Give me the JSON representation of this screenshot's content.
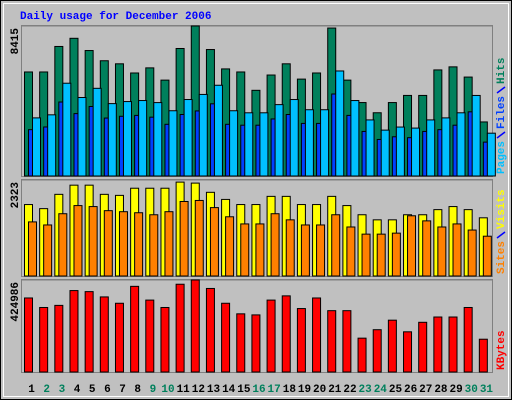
{
  "chart_data": [
    {
      "type": "bar",
      "title": "Daily usage for December 2006",
      "ylim": [
        0,
        8415
      ],
      "yticks": [
        8415
      ],
      "series": [
        {
          "name": "Pages",
          "color": "#00c0ff",
          "values": [
            3260,
            3432,
            5205,
            4404,
            4919,
            4061,
            4176,
            4233,
            4118,
            3661,
            4290,
            4576,
            5091,
            3661,
            3546,
            3546,
            4004,
            4290,
            3718,
            3718,
            5892,
            4233,
            3146,
            2574,
            2746,
            2688,
            3146,
            3260,
            3546,
            4519,
            2402
          ]
        },
        {
          "name": "Files",
          "color": "#0040ff",
          "values": [
            2600,
            2750,
            4150,
            3500,
            3900,
            3250,
            3350,
            3400,
            3300,
            2900,
            3450,
            3650,
            4050,
            2900,
            2850,
            2850,
            3200,
            3450,
            2950,
            2950,
            4600,
            3400,
            2500,
            2050,
            2200,
            2150,
            2500,
            2600,
            2850,
            3600,
            1900
          ]
        },
        {
          "name": "Hits",
          "color": "#00805c",
          "values": [
            5836,
            5836,
            7267,
            7725,
            7038,
            6466,
            6294,
            5779,
            6066,
            5379,
            7153,
            8415,
            7095,
            6008,
            5836,
            4807,
            5665,
            6294,
            5436,
            5779,
            8300,
            5379,
            4120,
            3548,
            4120,
            4520,
            4520,
            5951,
            6123,
            5550,
            3033
          ]
        }
      ]
    },
    {
      "type": "bar",
      "ylim": [
        0,
        2323
      ],
      "yticks": [
        2323
      ],
      "series": [
        {
          "name": "Sites",
          "color": "#ff8000",
          "values": [
            1309,
            1235,
            1507,
            1704,
            1680,
            1581,
            1556,
            1531,
            1482,
            1556,
            1803,
            1828,
            1655,
            1433,
            1260,
            1260,
            1507,
            1359,
            1235,
            1235,
            1482,
            1186,
            1013,
            1013,
            1037,
            1457,
            1334,
            1186,
            1260,
            1112,
            963
          ]
        },
        {
          "name": "Visits",
          "color": "#ffff00",
          "values": [
            1729,
            1630,
            1976,
            2198,
            2198,
            1976,
            1951,
            2124,
            2124,
            2124,
            2272,
            2248,
            2025,
            1853,
            1729,
            1729,
            1927,
            1927,
            1729,
            1729,
            1927,
            1704,
            1482,
            1359,
            1359,
            1482,
            1482,
            1606,
            1680,
            1606,
            1408
          ]
        }
      ]
    },
    {
      "type": "bar",
      "ylim": [
        0,
        424986
      ],
      "yticks": [
        424986
      ],
      "categories": [
        "1",
        "2",
        "3",
        "4",
        "5",
        "6",
        "7",
        "8",
        "9",
        "10",
        "11",
        "12",
        "13",
        "14",
        "15",
        "16",
        "17",
        "18",
        "19",
        "20",
        "21",
        "22",
        "23",
        "24",
        "25",
        "26",
        "27",
        "28",
        "29",
        "30",
        "31"
      ],
      "category_colors": [
        "#000000",
        "#00805c",
        "#00805c",
        "#000000",
        "#000000",
        "#000000",
        "#000000",
        "#000000",
        "#00805c",
        "#00805c",
        "#000000",
        "#000000",
        "#000000",
        "#000000",
        "#000000",
        "#00805c",
        "#00805c",
        "#000000",
        "#000000",
        "#000000",
        "#000000",
        "#000000",
        "#00805c",
        "#00805c",
        "#000000",
        "#000000",
        "#000000",
        "#000000",
        "#000000",
        "#00805c",
        "#00805c"
      ],
      "series": [
        {
          "name": "KBytes",
          "color": "#ff0000",
          "values": [
            341950,
            297985,
            307755,
            376145,
            371260,
            346835,
            317525,
            395685,
            332180,
            297985,
            405455,
            424986,
            385915,
            317525,
            268675,
            263790,
            332180,
            351720,
            293100,
            341950,
            283330,
            283330,
            156320,
            195400,
            239365,
            185630,
            229595,
            254020,
            254020,
            297985,
            151435
          ]
        }
      ]
    }
  ]
}
